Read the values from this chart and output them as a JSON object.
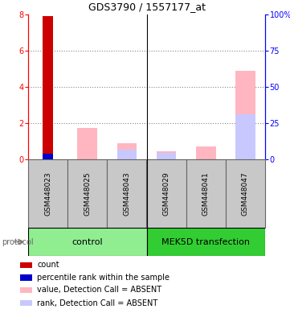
{
  "title": "GDS3790 / 1557177_at",
  "samples": [
    "GSM448023",
    "GSM448025",
    "GSM448043",
    "GSM448029",
    "GSM448041",
    "GSM448047"
  ],
  "ylim_left": [
    0,
    8
  ],
  "ylim_right": [
    0,
    100
  ],
  "yticks_left": [
    0,
    2,
    4,
    6,
    8
  ],
  "yticks_right": [
    0,
    25,
    50,
    75,
    100
  ],
  "ytick_labels_right": [
    "0",
    "25",
    "50",
    "75",
    "100%"
  ],
  "red_bars": [
    7.9,
    0,
    0,
    0,
    0,
    0
  ],
  "blue_bars": [
    0.3,
    0,
    0,
    0,
    0,
    0
  ],
  "pink_bars": [
    0,
    1.75,
    0.9,
    0.45,
    0.7,
    4.9
  ],
  "lavender_bars": [
    0,
    0,
    0.55,
    0.35,
    0.0,
    2.5
  ],
  "legend_items": [
    {
      "color": "#CC0000",
      "label": "count"
    },
    {
      "color": "#0000CC",
      "label": "percentile rank within the sample"
    },
    {
      "color": "#FFB6C1",
      "label": "value, Detection Call = ABSENT"
    },
    {
      "color": "#C8C8FF",
      "label": "rank, Detection Call = ABSENT"
    }
  ],
  "ctrl_color": "#90EE90",
  "mek_color": "#32CD32",
  "sample_box_color": "#C8C8C8",
  "sample_box_edge": "#666666",
  "fig_width": 3.61,
  "fig_height": 3.84,
  "dpi": 100
}
